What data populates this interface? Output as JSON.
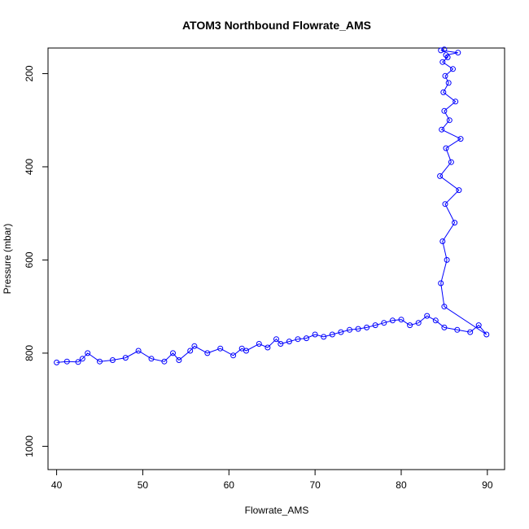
{
  "chart_data": {
    "type": "scatter",
    "title": "ATOM3 Northbound Flowrate_AMS",
    "xlabel": "Flowrate_AMS",
    "ylabel": "Pressure (mbar)",
    "xlim": [
      39,
      92
    ],
    "ylim": [
      1050,
      145
    ],
    "y_reversed": true,
    "grid": false,
    "legend": "none",
    "marker": "open-circle",
    "connect_points": true,
    "xticks": [
      40,
      50,
      60,
      70,
      80,
      90
    ],
    "yticks": [
      200,
      400,
      600,
      800,
      1000
    ],
    "series": [
      {
        "color": "#0000ff",
        "x": [
          40.0,
          41.2,
          42.5,
          43.0,
          43.6,
          45.0,
          46.5,
          48.0,
          49.5,
          51.0,
          52.5,
          53.5,
          54.2,
          55.5,
          56.0,
          57.5,
          59.0,
          60.5,
          61.5,
          62.0,
          63.5,
          64.5,
          65.5,
          66.0,
          67.0,
          68.0,
          69.0,
          70.0,
          71.0,
          72.0,
          73.0,
          74.0,
          75.0,
          76.0,
          77.0,
          78.0,
          79.0,
          80.0,
          81.0,
          82.0,
          83.0,
          84.0,
          85.0,
          86.5,
          88.0,
          89.0,
          89.9,
          85.0,
          84.6,
          85.3,
          84.8,
          86.2,
          85.1,
          86.7,
          84.5,
          85.8,
          85.2,
          86.9,
          84.7,
          85.6,
          85.0,
          86.3,
          84.9,
          85.5,
          85.1,
          86.0,
          84.8,
          85.4,
          85.2,
          86.6,
          84.6,
          85.0
        ],
        "y": [
          820,
          818,
          819,
          812,
          800,
          818,
          815,
          810,
          795,
          812,
          818,
          800,
          815,
          795,
          785,
          800,
          790,
          805,
          790,
          795,
          780,
          788,
          770,
          780,
          775,
          770,
          768,
          760,
          765,
          760,
          755,
          750,
          748,
          745,
          740,
          735,
          730,
          728,
          740,
          735,
          720,
          730,
          745,
          750,
          755,
          740,
          760,
          700,
          650,
          600,
          560,
          520,
          480,
          450,
          420,
          390,
          360,
          340,
          320,
          300,
          280,
          260,
          240,
          220,
          205,
          190,
          175,
          165,
          160,
          155,
          150,
          148
        ]
      }
    ]
  }
}
